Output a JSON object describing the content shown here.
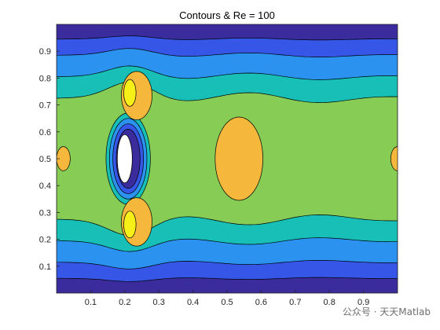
{
  "chart_data": {
    "type": "contourf",
    "title": "Contours & Re = 100",
    "xlabel": "",
    "ylabel": "",
    "xlim": [
      0,
      1
    ],
    "ylim": [
      0,
      1
    ],
    "xticks": [
      "0.1",
      "0.2",
      "0.3",
      "0.4",
      "0.5",
      "0.6",
      "0.7",
      "0.8",
      "0.9"
    ],
    "yticks": [
      "0.1",
      "0.2",
      "0.3",
      "0.4",
      "0.5",
      "0.6",
      "0.7",
      "0.8",
      "0.9"
    ],
    "colormap": [
      "#3a2c9c",
      "#3556e6",
      "#2b92f0",
      "#17bfb7",
      "#86cc55",
      "#f6b83c",
      "#f7f018"
    ],
    "obstacle": {
      "shape": "ellipse",
      "cx": 0.2,
      "cy": 0.5,
      "rx": 0.022,
      "ry": 0.09,
      "color": "#ffffff"
    },
    "contours": [
      {
        "level": 1,
        "color": "#3556e6",
        "y": [
          0.055,
          0.945
        ],
        "amp": 0.012
      },
      {
        "level": 2,
        "color": "#2b92f0",
        "y": [
          0.115,
          0.885
        ],
        "amp": 0.025
      },
      {
        "level": 3,
        "color": "#17bfb7",
        "y": [
          0.195,
          0.805
        ],
        "amp": 0.04
      },
      {
        "level": 4,
        "color": "#86cc55",
        "y": [
          0.275,
          0.725
        ],
        "amp": 0.06
      }
    ],
    "regions": [
      {
        "name": "wake-upper",
        "color": "#f6b83c",
        "cx": 0.235,
        "cy": 0.735,
        "rx": 0.045,
        "ry": 0.09
      },
      {
        "name": "wake-upper-core",
        "color": "#f7f018",
        "cx": 0.215,
        "cy": 0.745,
        "rx": 0.018,
        "ry": 0.05
      },
      {
        "name": "wake-lower",
        "color": "#f6b83c",
        "cx": 0.235,
        "cy": 0.265,
        "rx": 0.045,
        "ry": 0.09
      },
      {
        "name": "wake-lower-core",
        "color": "#f7f018",
        "cx": 0.215,
        "cy": 0.255,
        "rx": 0.018,
        "ry": 0.05
      },
      {
        "name": "center-blob",
        "color": "#f6b83c",
        "cx": 0.535,
        "cy": 0.5,
        "rx": 0.07,
        "ry": 0.155
      },
      {
        "name": "left-blob",
        "color": "#f6b83c",
        "cx": 0.02,
        "cy": 0.5,
        "rx": 0.02,
        "ry": 0.045
      },
      {
        "name": "right-blob",
        "color": "#f6b83c",
        "cx": 1.0,
        "cy": 0.5,
        "rx": 0.02,
        "ry": 0.045
      }
    ],
    "grid": false,
    "legend": "none"
  },
  "watermark": "公众号 · 天天Matlab"
}
